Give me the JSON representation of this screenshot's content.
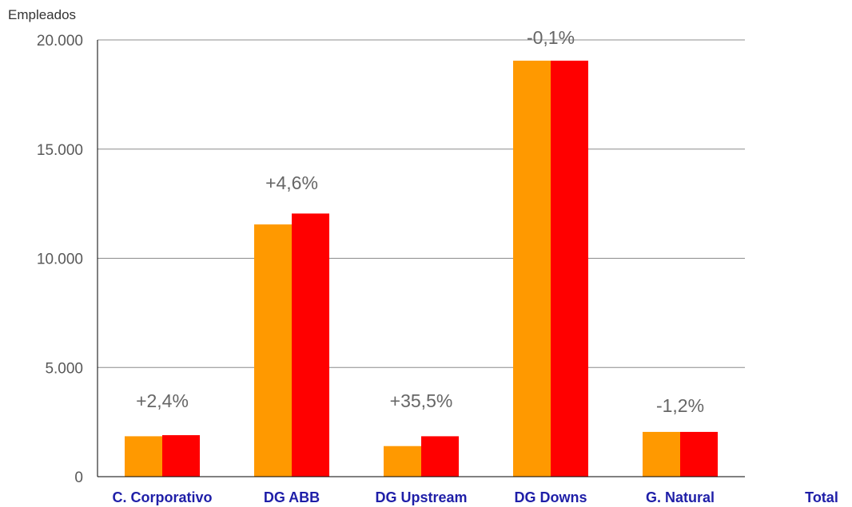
{
  "chart_data": {
    "type": "bar",
    "ylabel": "Empleados",
    "ylim": [
      0,
      20000
    ],
    "yticks": [
      0,
      5000,
      10000,
      15000,
      20000
    ],
    "ytick_labels": [
      "0",
      "5.000",
      "10.000",
      "15.000",
      "20.000"
    ],
    "categories": [
      "C. Corporativo",
      "DG ABB",
      "DG Upstream",
      "DG Downs",
      "G. Natural",
      "Total"
    ],
    "series": [
      {
        "values": [
          1850,
          11550,
          1400,
          19050,
          2050,
          null
        ],
        "color": "#FF9900"
      },
      {
        "values": [
          1900,
          12050,
          1850,
          19050,
          2050,
          null
        ],
        "color": "#FF0000"
      }
    ],
    "annotations": [
      "+2,4%",
      "+4,6%",
      "+35,5%",
      "-0,1%",
      "-1,2%",
      ""
    ],
    "grid": true,
    "colors": {
      "grid": "#8c8c8c",
      "category_labels": "#1f1fa8",
      "annotations": "#666666"
    }
  }
}
